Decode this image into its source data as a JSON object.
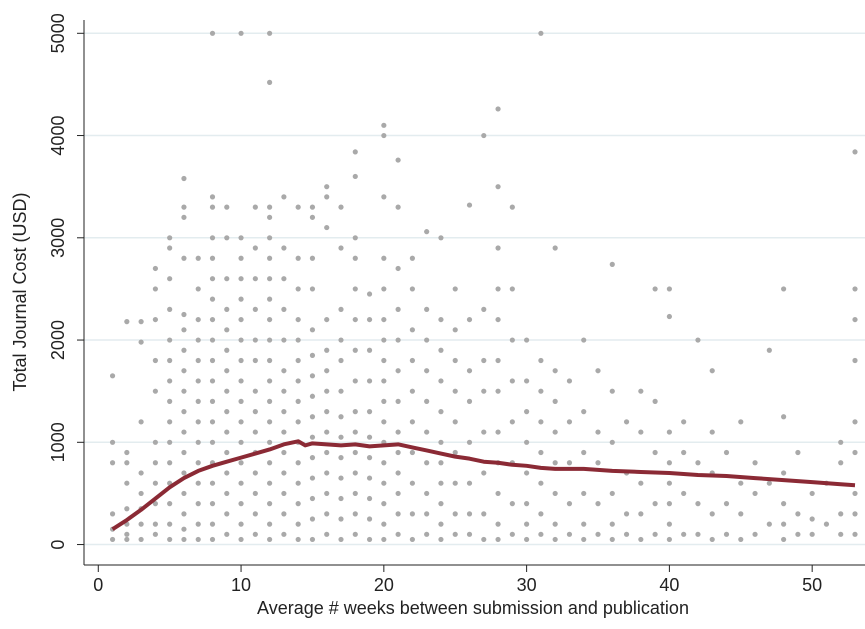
{
  "chart_data": {
    "type": "scatter",
    "x_label": "Average # weeks between submission and publication",
    "y_label": "Total Journal Cost (USD)",
    "xlim": [
      -1,
      53.7
    ],
    "ylim": [
      -200,
      5130
    ],
    "xticks": [
      0,
      10,
      20,
      30,
      40,
      50
    ],
    "yticks": [
      0,
      1000,
      2000,
      3000,
      4000,
      5000
    ],
    "grid": true,
    "scatter": {
      "color": "#a9a9a9",
      "x": [
        1,
        1,
        1,
        1,
        1,
        1,
        2,
        2,
        2,
        2,
        2,
        2,
        2,
        2,
        3,
        3,
        3,
        3,
        3,
        3,
        3,
        3,
        4,
        4,
        4,
        4,
        4,
        4,
        4,
        4,
        4,
        4,
        4,
        5,
        5,
        5,
        5,
        5,
        5,
        5,
        5,
        5,
        5,
        5,
        5,
        5,
        5,
        5,
        6,
        6,
        6,
        6,
        6,
        6,
        6,
        6,
        6,
        6,
        6,
        6,
        6,
        6,
        6,
        6,
        6,
        7,
        7,
        7,
        7,
        7,
        7,
        7,
        7,
        7,
        7,
        7,
        7,
        7,
        7,
        8,
        8,
        8,
        8,
        8,
        8,
        8,
        8,
        8,
        8,
        8,
        8,
        8,
        8,
        8,
        8,
        8,
        8,
        8,
        9,
        9,
        9,
        9,
        9,
        9,
        9,
        9,
        9,
        9,
        9,
        9,
        9,
        9,
        9,
        10,
        10,
        10,
        10,
        10,
        10,
        10,
        10,
        10,
        10,
        10,
        10,
        10,
        10,
        10,
        10,
        10,
        11,
        11,
        11,
        11,
        11,
        11,
        11,
        11,
        11,
        11,
        11,
        11,
        11,
        11,
        12,
        12,
        12,
        12,
        12,
        12,
        12,
        12,
        12,
        12,
        12,
        12,
        12,
        12,
        12,
        12,
        12,
        12,
        12,
        12,
        13,
        13,
        13,
        13,
        13,
        13,
        13,
        13,
        13,
        13,
        13,
        13,
        13,
        13,
        14,
        14,
        14,
        14,
        14,
        14,
        14,
        14,
        14,
        14,
        14,
        14,
        14,
        14,
        14,
        15,
        15,
        15,
        15,
        15,
        15,
        15,
        15,
        15,
        15,
        15,
        15,
        15,
        15,
        15,
        16,
        16,
        16,
        16,
        16,
        16,
        16,
        16,
        16,
        16,
        16,
        16,
        16,
        16,
        17,
        17,
        17,
        17,
        17,
        17,
        17,
        17,
        17,
        17,
        17,
        17,
        17,
        18,
        18,
        18,
        18,
        18,
        18,
        18,
        18,
        18,
        18,
        18,
        18,
        18,
        18,
        18,
        19,
        19,
        19,
        19,
        19,
        19,
        19,
        19,
        19,
        19,
        19,
        20,
        20,
        20,
        20,
        20,
        20,
        20,
        20,
        20,
        20,
        20,
        20,
        20,
        20,
        20,
        20,
        20,
        21,
        21,
        21,
        21,
        21,
        21,
        21,
        21,
        21,
        21,
        21,
        21,
        21,
        22,
        22,
        22,
        22,
        22,
        22,
        22,
        22,
        22,
        22,
        23,
        23,
        23,
        23,
        23,
        23,
        23,
        23,
        23,
        23,
        24,
        24,
        24,
        24,
        24,
        24,
        24,
        24,
        24,
        24,
        24,
        25,
        25,
        25,
        25,
        25,
        25,
        25,
        25,
        25,
        26,
        26,
        26,
        26,
        26,
        26,
        26,
        26,
        27,
        27,
        27,
        27,
        27,
        27,
        27,
        27,
        28,
        28,
        28,
        28,
        28,
        28,
        28,
        28,
        28,
        28,
        28,
        28,
        29,
        29,
        29,
        29,
        29,
        29,
        29,
        29,
        30,
        30,
        30,
        30,
        30,
        30,
        30,
        30,
        31,
        31,
        31,
        31,
        31,
        31,
        31,
        31,
        32,
        32,
        32,
        32,
        32,
        32,
        32,
        32,
        33,
        33,
        33,
        33,
        33,
        34,
        34,
        34,
        34,
        34,
        34,
        35,
        35,
        35,
        35,
        35,
        36,
        36,
        36,
        36,
        36,
        36,
        37,
        37,
        37,
        37,
        38,
        38,
        38,
        38,
        38,
        39,
        39,
        39,
        39,
        39,
        40,
        40,
        40,
        40,
        40,
        40,
        40,
        40,
        41,
        41,
        41,
        41,
        42,
        42,
        42,
        42,
        43,
        43,
        43,
        43,
        43,
        44,
        44,
        44,
        45,
        45,
        45,
        45,
        46,
        46,
        46,
        47,
        47,
        47,
        48,
        48,
        48,
        48,
        48,
        48,
        49,
        49,
        49,
        50,
        50,
        50,
        51,
        51,
        52,
        52,
        52,
        52,
        53,
        53,
        53,
        53,
        53,
        53,
        53,
        53,
        53
      ],
      "values": [
        50,
        150,
        300,
        800,
        1000,
        1650,
        50,
        100,
        200,
        350,
        600,
        800,
        900,
        2180,
        50,
        200,
        350,
        500,
        700,
        1200,
        1980,
        2180,
        100,
        200,
        400,
        600,
        800,
        1000,
        1500,
        1800,
        2200,
        2500,
        2700,
        50,
        200,
        400,
        600,
        800,
        1000,
        1200,
        1400,
        1600,
        1800,
        2000,
        2300,
        2600,
        2900,
        3000,
        50,
        150,
        300,
        500,
        700,
        900,
        1100,
        1300,
        1500,
        1700,
        1900,
        2100,
        2250,
        2800,
        3200,
        3300,
        3580,
        50,
        200,
        400,
        600,
        800,
        1000,
        1200,
        1400,
        1600,
        1800,
        2000,
        2200,
        2500,
        2800,
        50,
        200,
        400,
        600,
        800,
        1000,
        1200,
        1400,
        1600,
        1800,
        2000,
        2200,
        2400,
        2600,
        2800,
        3000,
        3300,
        3400,
        5000,
        100,
        300,
        500,
        700,
        900,
        1100,
        1300,
        1500,
        1700,
        1900,
        2100,
        2300,
        2600,
        3000,
        3300,
        50,
        200,
        400,
        600,
        800,
        1000,
        1200,
        1400,
        1600,
        1800,
        2000,
        2200,
        2400,
        2600,
        2800,
        3000,
        5000,
        100,
        300,
        500,
        700,
        900,
        1100,
        1300,
        1500,
        1800,
        2000,
        2300,
        2600,
        2900,
        3300,
        50,
        200,
        400,
        600,
        800,
        1000,
        1200,
        1400,
        1600,
        1800,
        2000,
        2200,
        2400,
        2600,
        2800,
        3000,
        3200,
        3300,
        4520,
        5000,
        100,
        300,
        500,
        700,
        900,
        1100,
        1300,
        1500,
        1700,
        2000,
        2300,
        2600,
        2900,
        3400,
        50,
        200,
        400,
        600,
        800,
        1000,
        1200,
        1400,
        1600,
        1800,
        2000,
        2200,
        2500,
        2800,
        3300,
        50,
        250,
        450,
        650,
        850,
        1050,
        1250,
        1450,
        1650,
        1850,
        2100,
        2500,
        2800,
        3200,
        3300,
        100,
        300,
        500,
        700,
        900,
        1100,
        1300,
        1500,
        1700,
        1900,
        2200,
        3100,
        3400,
        3500,
        50,
        250,
        450,
        650,
        850,
        1050,
        1250,
        1500,
        1800,
        2000,
        2300,
        2900,
        3300,
        100,
        300,
        500,
        700,
        900,
        1100,
        1300,
        1600,
        1900,
        2200,
        2500,
        2800,
        3000,
        3600,
        3840,
        50,
        250,
        450,
        650,
        850,
        1050,
        1300,
        1600,
        1900,
        2200,
        2450,
        50,
        200,
        400,
        600,
        800,
        1000,
        1200,
        1400,
        1600,
        1800,
        2000,
        2200,
        2500,
        2800,
        3400,
        4000,
        4100,
        100,
        300,
        500,
        700,
        900,
        1100,
        1400,
        1700,
        2000,
        2300,
        2700,
        3300,
        3760,
        50,
        300,
        600,
        900,
        1200,
        1500,
        1800,
        2100,
        2500,
        2800,
        100,
        300,
        500,
        800,
        1100,
        1400,
        1700,
        2000,
        2300,
        3060,
        50,
        200,
        400,
        600,
        800,
        1000,
        1300,
        1600,
        1900,
        2200,
        3000,
        100,
        300,
        600,
        900,
        1200,
        1500,
        1800,
        2100,
        2500,
        100,
        300,
        600,
        1000,
        1400,
        1700,
        2200,
        3320,
        50,
        300,
        700,
        1100,
        1500,
        1800,
        2300,
        4000,
        50,
        200,
        500,
        800,
        1100,
        1500,
        1800,
        2200,
        2500,
        2900,
        3500,
        4260,
        100,
        400,
        800,
        1200,
        1600,
        2000,
        2500,
        3300,
        50,
        200,
        400,
        700,
        1000,
        1300,
        1600,
        2000,
        100,
        300,
        600,
        900,
        1200,
        1500,
        1800,
        5000,
        50,
        200,
        500,
        800,
        1100,
        1400,
        1700,
        2900,
        100,
        400,
        800,
        1200,
        1600,
        50,
        200,
        500,
        900,
        1300,
        2000,
        100,
        400,
        800,
        1100,
        1700,
        50,
        200,
        500,
        1000,
        1500,
        2740,
        100,
        300,
        700,
        1200,
        50,
        300,
        600,
        1100,
        1500,
        100,
        400,
        900,
        1400,
        2500,
        50,
        200,
        400,
        600,
        800,
        1100,
        2230,
        2500,
        100,
        500,
        900,
        1200,
        100,
        400,
        800,
        2000,
        50,
        300,
        700,
        1100,
        1700,
        100,
        400,
        900,
        50,
        300,
        600,
        1200,
        100,
        500,
        800,
        200,
        600,
        1900,
        50,
        200,
        400,
        700,
        1250,
        2500,
        100,
        300,
        900,
        100,
        250,
        500,
        200,
        600,
        100,
        300,
        800,
        1000,
        100,
        300,
        500,
        900,
        1200,
        1800,
        2200,
        2500,
        3840
      ]
    },
    "line": {
      "color": "#8b2a35",
      "x": [
        1,
        2,
        3,
        4,
        5,
        6,
        7,
        8,
        9,
        10,
        11,
        12,
        13,
        14,
        14.5,
        15,
        16,
        17,
        18,
        19,
        20,
        21,
        22,
        23,
        24,
        25,
        26,
        27,
        28,
        29,
        30,
        31,
        32,
        33,
        34,
        35,
        36,
        38,
        40,
        42,
        44,
        46,
        48,
        50,
        52,
        53
      ],
      "values": [
        150,
        240,
        340,
        450,
        560,
        650,
        720,
        770,
        810,
        850,
        890,
        930,
        980,
        1010,
        970,
        990,
        980,
        970,
        980,
        960,
        970,
        980,
        950,
        920,
        890,
        860,
        840,
        810,
        800,
        780,
        770,
        750,
        740,
        740,
        740,
        730,
        720,
        710,
        700,
        680,
        670,
        650,
        630,
        610,
        590,
        580
      ]
    }
  }
}
